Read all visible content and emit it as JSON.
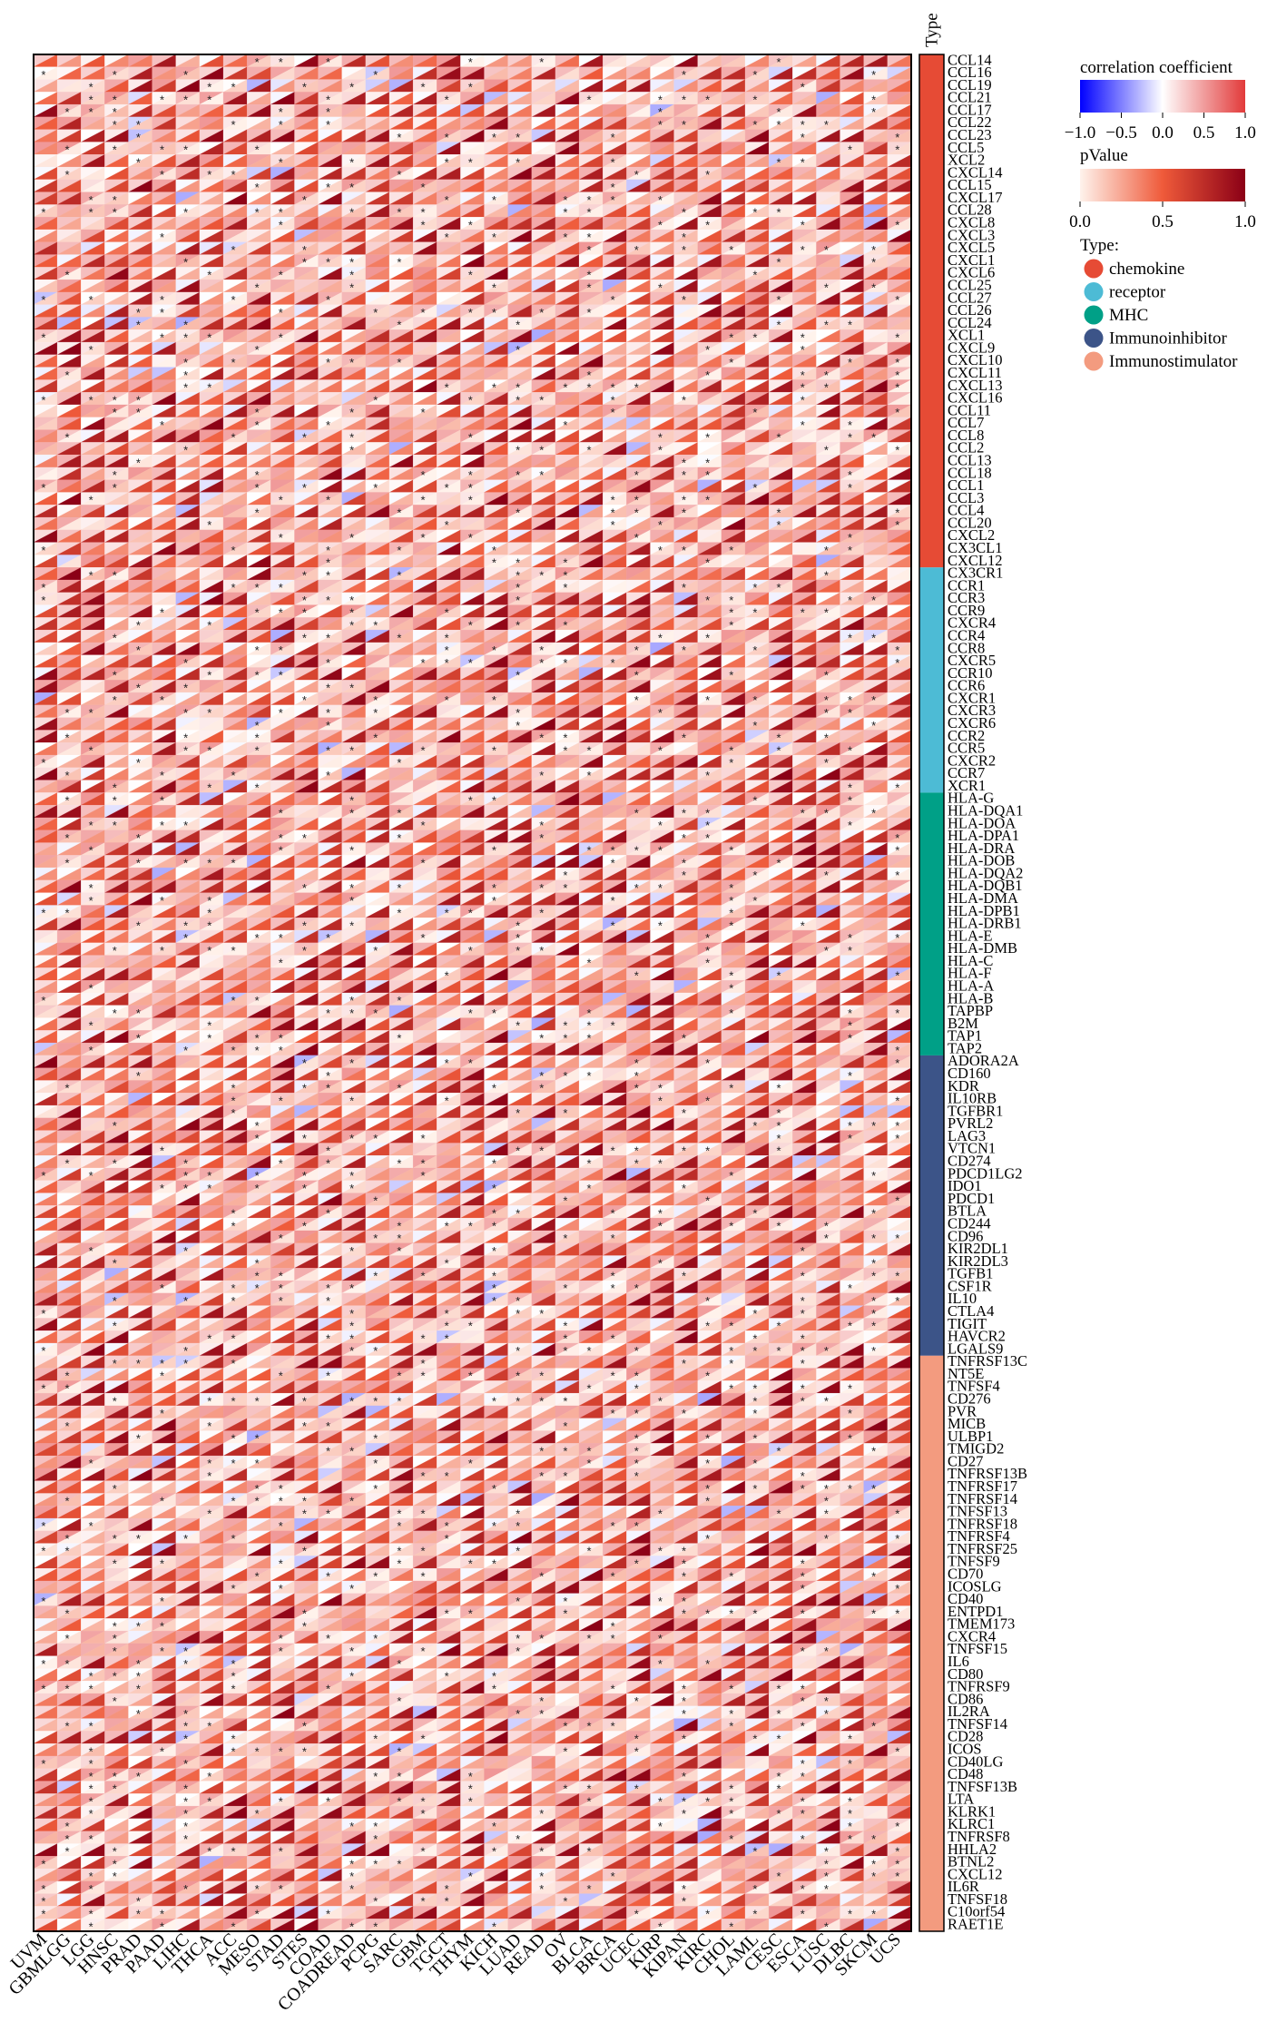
{
  "chart_data": {
    "type": "heatmap",
    "title": "",
    "xlabel": "",
    "ylabel": "",
    "x": [
      "UVM",
      "GBMLGG",
      "LGG",
      "HNSC",
      "PRAD",
      "PAAD",
      "LIHC",
      "THCA",
      "ACC",
      "MESO",
      "STAD",
      "STES",
      "COAD",
      "COADREAD",
      "PCPG",
      "SARC",
      "GBM",
      "TGCT",
      "THYM",
      "KICH",
      "LUAD",
      "READ",
      "OV",
      "BLCA",
      "BRCA",
      "UCEC",
      "KIRP",
      "KIPAN",
      "KIRC",
      "CHOL",
      "LAML",
      "CESC",
      "ESCA",
      "LUSC",
      "DLBC",
      "SKCM",
      "UCS"
    ],
    "y": [
      "CCL14",
      "CCL16",
      "CCL19",
      "CCL21",
      "CCL17",
      "CCL22",
      "CCL23",
      "CCL5",
      "XCL2",
      "CXCL14",
      "CCL15",
      "CXCL17",
      "CCL28",
      "CXCL8",
      "CXCL3",
      "CXCL5",
      "CXCL1",
      "CXCL6",
      "CCL25",
      "CCL27",
      "CCL26",
      "CCL24",
      "XCL1",
      "CXCL9",
      "CXCL10",
      "CXCL11",
      "CXCL13",
      "CXCL16",
      "CCL11",
      "CCL7",
      "CCL8",
      "CCL2",
      "CCL13",
      "CCL18",
      "CCL1",
      "CCL3",
      "CCL4",
      "CCL20",
      "CXCL2",
      "CX3CL1",
      "CXCL12",
      "CX3CR1",
      "CCR1",
      "CCR3",
      "CCR9",
      "CXCR4",
      "CCR4",
      "CCR8",
      "CXCR5",
      "CCR10",
      "CCR6",
      "CXCR1",
      "CXCR3",
      "CXCR6",
      "CCR2",
      "CCR5",
      "CXCR2",
      "CCR7",
      "XCR1",
      "HLA-G",
      "HLA-DQA1",
      "HLA-DOA",
      "HLA-DPA1",
      "HLA-DRA",
      "HLA-DOB",
      "HLA-DQA2",
      "HLA-DQB1",
      "HLA-DMA",
      "HLA-DPB1",
      "HLA-DRB1",
      "HLA-E",
      "HLA-DMB",
      "HLA-C",
      "HLA-F",
      "HLA-A",
      "HLA-B",
      "TAPBP",
      "B2M",
      "TAP1",
      "TAP2",
      "ADORA2A",
      "CD160",
      "KDR",
      "IL10RB",
      "TGFBR1",
      "PVRL2",
      "LAG3",
      "VTCN1",
      "CD274",
      "PDCD1LG2",
      "IDO1",
      "PDCD1",
      "BTLA",
      "CD244",
      "CD96",
      "KIR2DL1",
      "KIR2DL3",
      "TGFB1",
      "CSF1R",
      "IL10",
      "CTLA4",
      "TIGIT",
      "HAVCR2",
      "LGALS9",
      "TNFRSF13C",
      "NT5E",
      "TNFSF4",
      "CD276",
      "PVR",
      "MICB",
      "ULBP1",
      "TMIGD2",
      "CD27",
      "TNFRSF13B",
      "TNFRSF17",
      "TNFRSF14",
      "TNFSF13",
      "TNFRSF18",
      "TNFRSF4",
      "TNFRSF25",
      "TNFSF9",
      "CD70",
      "ICOSLG",
      "CD40",
      "ENTPD1",
      "TMEM173",
      "CXCR4",
      "TNFSF15",
      "IL6",
      "CD80",
      "TNFRSF9",
      "CD86",
      "IL2RA",
      "TNFSF14",
      "CD28",
      "ICOS",
      "CD40LG",
      "CD48",
      "TNFSF13B",
      "LTA",
      "KLRK1",
      "KLRC1",
      "TNFRSF8",
      "HHLA2",
      "BTNL2",
      "CXCL12",
      "IL6R",
      "TNFSF18",
      "C10orf54",
      "RAET1E"
    ],
    "types": [
      {
        "name": "chemokine",
        "count": 41,
        "color": "#E64B35"
      },
      {
        "name": "receptor",
        "count": 18,
        "color": "#4DBBD5"
      },
      {
        "name": "MHC",
        "count": 21,
        "color": "#00A087"
      },
      {
        "name": "Immunoinhibitor",
        "count": 24,
        "color": "#3C5488"
      },
      {
        "name": "Immunostimulator",
        "count": 46,
        "color": "#F39B7F"
      }
    ],
    "type_strip_label": "Type",
    "legend": {
      "corr_title": "correlation coefficient",
      "corr_ticks": [
        "−1.0",
        "−0.5",
        "0.0",
        "0.5",
        "1.0"
      ],
      "corr_range": [
        -1.0,
        1.0
      ],
      "p_title": "pValue",
      "p_ticks": [
        "0.0",
        "0.5",
        "1.0"
      ],
      "p_range": [
        0.0,
        1.0
      ],
      "type_title": "Type:",
      "placement": "top-right"
    },
    "significance_marker": "*",
    "grid": false,
    "generator": {
      "seed": 20240611,
      "note_correlation_mean": 0.18
    }
  }
}
